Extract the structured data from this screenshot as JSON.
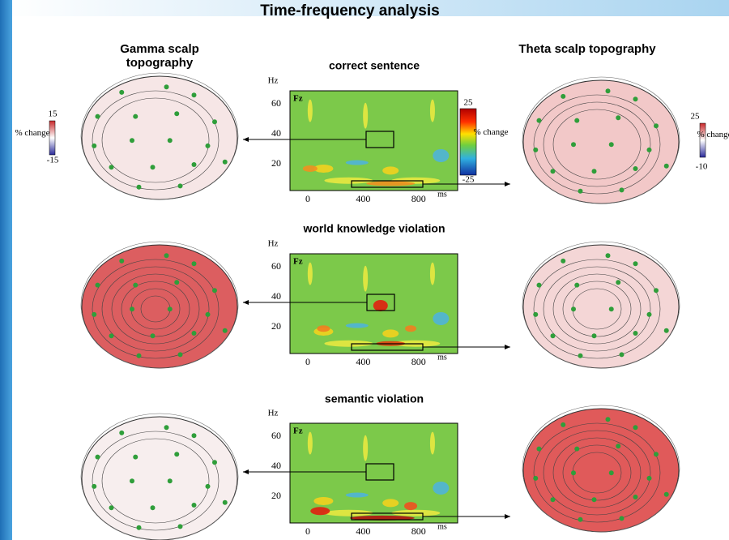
{
  "header": {
    "title": "Time-frequency analysis"
  },
  "columns": {
    "left": "Gamma scalp topography",
    "right": "Theta scalp topography"
  },
  "panels": [
    {
      "label": "correct sentence",
      "electrode": "Fz",
      "y_unit": "Hz",
      "x_unit": "ms",
      "y_ticks": [
        60,
        40,
        20
      ],
      "x_ticks": [
        0,
        400,
        800
      ]
    },
    {
      "label": "world knowledge violation",
      "electrode": "Fz",
      "y_unit": "Hz",
      "x_unit": "ms",
      "y_ticks": [
        60,
        40,
        20
      ],
      "x_ticks": [
        0,
        400,
        800
      ]
    },
    {
      "label": "semantic violation",
      "electrode": "Fz",
      "y_unit": "Hz",
      "x_unit": "ms",
      "y_ticks": [
        60,
        40,
        20
      ],
      "x_ticks": [
        0,
        400,
        800
      ]
    }
  ],
  "colorbars": {
    "gamma": {
      "max": 15,
      "min": -15,
      "unit": "% change"
    },
    "spectrogram": {
      "max": 25,
      "min": -25,
      "unit": "% change"
    },
    "theta": {
      "max": 25,
      "min": -10,
      "unit": "% change"
    }
  }
}
